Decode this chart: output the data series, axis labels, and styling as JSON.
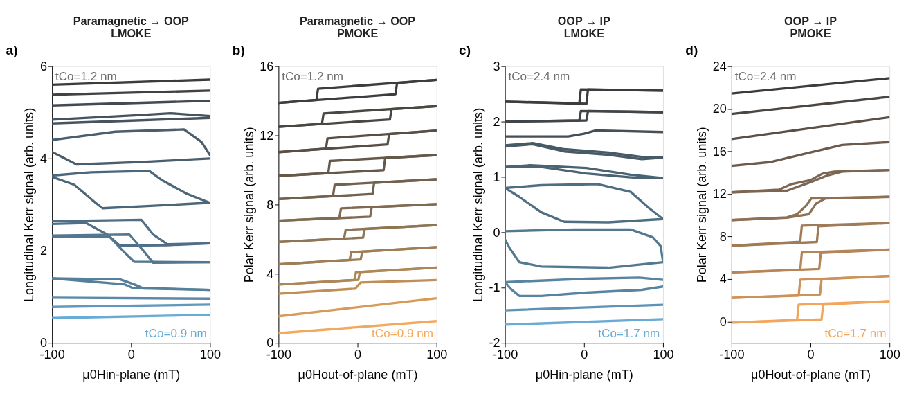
{
  "chart_data": [
    {
      "type": "line",
      "title": "Paramagnetic → OOP",
      "subtitle": "LMOKE",
      "xlabel": "μ0Hin-plane (mT)",
      "ylabel": "Longitudinal Kerr signal (arb. units)",
      "annotations": [
        "a)",
        "tCo=1.2 nm",
        "tCo=0.9 nm"
      ],
      "xlim": [
        -100,
        100
      ],
      "xticks": [
        -100,
        0,
        100
      ],
      "ylim": [
        0,
        6
      ],
      "yticks": [
        0,
        2,
        4,
        6
      ],
      "series": [
        {
          "color": "#3c3c3c",
          "x": [
            -100,
            100
          ],
          "values": [
            5.6,
            5.71
          ]
        },
        {
          "color": "#3f4346",
          "x": [
            -100,
            100
          ],
          "values": [
            5.38,
            5.47
          ]
        },
        {
          "color": "#434b52",
          "x": [
            -100,
            100
          ],
          "values": [
            5.15,
            5.25
          ]
        },
        {
          "color": "#475460",
          "x": [
            -100,
            0,
            100
          ],
          "values": [
            4.76,
            4.82,
            4.88
          ]
        },
        {
          "color": "#475460",
          "x": [
            -100,
            0,
            50,
            100
          ],
          "values": [
            4.84,
            4.93,
            4.98,
            4.92
          ]
        },
        {
          "color": "#4a5e6e",
          "x": [
            -100,
            -84,
            -69,
            10,
            100
          ],
          "values": [
            4.14,
            4.0,
            3.87,
            3.92,
            4.0
          ]
        },
        {
          "color": "#4a5e6e",
          "x": [
            -100,
            -96,
            -20,
            67,
            89,
            100
          ],
          "values": [
            4.4,
            4.41,
            4.58,
            4.63,
            4.36,
            4.07
          ]
        },
        {
          "color": "#4d677a",
          "x": [
            -100,
            -72,
            -45,
            -36,
            25,
            100
          ],
          "values": [
            3.6,
            3.43,
            3.04,
            2.92,
            2.97,
            3.04
          ]
        },
        {
          "color": "#4d677a",
          "x": [
            -100,
            -51,
            23,
            40,
            70,
            98
          ],
          "values": [
            3.63,
            3.7,
            3.73,
            3.52,
            3.24,
            3.05
          ]
        },
        {
          "color": "#506f86",
          "x": [
            -100,
            -57,
            -30,
            -14,
            46,
            100
          ],
          "values": [
            2.58,
            2.6,
            2.35,
            2.11,
            2.12,
            2.16
          ]
        },
        {
          "color": "#506f86",
          "x": [
            -100,
            13,
            28,
            46,
            100
          ],
          "values": [
            2.64,
            2.67,
            2.35,
            2.14,
            2.16
          ]
        },
        {
          "color": "#53778f",
          "x": [
            -100,
            -27,
            -11,
            4,
            100
          ],
          "values": [
            2.3,
            2.3,
            2.01,
            1.76,
            1.75
          ]
        },
        {
          "color": "#53778f",
          "x": [
            -100,
            -2,
            16,
            28,
            100
          ],
          "values": [
            2.33,
            2.35,
            1.99,
            1.74,
            1.75
          ]
        },
        {
          "color": "#567f99",
          "x": [
            -100,
            -14,
            4,
            16,
            100
          ],
          "values": [
            1.4,
            1.38,
            1.27,
            1.18,
            1.15
          ]
        },
        {
          "color": "#567f99",
          "x": [
            -100,
            -8,
            1,
            100
          ],
          "values": [
            1.4,
            1.27,
            1.2,
            1.15
          ]
        },
        {
          "color": "#5b8aa8",
          "x": [
            -100,
            100
          ],
          "values": [
            0.98,
            0.96
          ]
        },
        {
          "color": "#6198bf",
          "x": [
            -100,
            100
          ],
          "values": [
            0.78,
            0.83
          ]
        },
        {
          "color": "#69abd5",
          "x": [
            -100,
            100
          ],
          "values": [
            0.54,
            0.61
          ]
        }
      ]
    },
    {
      "type": "line",
      "title": "Paramagnetic → OOP",
      "subtitle": "PMOKE",
      "xlabel": "μ0Hout-of-plane (mT)",
      "ylabel": "Polar Kerr signal (arb. units)",
      "annotations": [
        "b)",
        "tCo=1.2 nm",
        "tCo=0.9 nm"
      ],
      "xlim": [
        -100,
        100
      ],
      "xticks": [
        -100,
        0,
        100
      ],
      "ylim": [
        0,
        16
      ],
      "yticks": [
        0,
        4,
        8,
        12,
        16
      ],
      "series": [
        {
          "color": "#3d3d3d",
          "x": [
            -100,
            48,
            50,
            100
          ],
          "values": [
            13.88,
            14.38,
            15.03,
            15.21
          ]
        },
        {
          "color": "#3d3d3d",
          "x": [
            -100,
            -52,
            -50,
            100
          ],
          "values": [
            13.88,
            14.05,
            14.7,
            15.21
          ]
        },
        {
          "color": "#4a4641",
          "x": [
            -100,
            41,
            43,
            100
          ],
          "values": [
            12.5,
            12.92,
            13.52,
            13.69
          ]
        },
        {
          "color": "#4a4641",
          "x": [
            -100,
            -45,
            -43,
            100
          ],
          "values": [
            12.5,
            12.67,
            13.27,
            13.69
          ]
        },
        {
          "color": "#574f45",
          "x": [
            -100,
            38,
            40,
            100
          ],
          "values": [
            11.03,
            11.48,
            12.08,
            12.28
          ]
        },
        {
          "color": "#574f45",
          "x": [
            -100,
            -40,
            -38,
            100
          ],
          "values": [
            11.03,
            11.23,
            11.83,
            12.28
          ]
        },
        {
          "color": "#64584a",
          "x": [
            -100,
            33,
            35,
            100
          ],
          "values": [
            9.66,
            9.99,
            10.69,
            10.86
          ]
        },
        {
          "color": "#64584a",
          "x": [
            -100,
            -37,
            -35,
            100
          ],
          "values": [
            9.66,
            9.82,
            10.52,
            10.86
          ]
        },
        {
          "color": "#72614e",
          "x": [
            -100,
            19,
            21,
            100
          ],
          "values": [
            8.32,
            8.61,
            9.26,
            9.46
          ]
        },
        {
          "color": "#72614e",
          "x": [
            -100,
            -31,
            -29,
            100
          ],
          "values": [
            8.32,
            8.49,
            9.14,
            9.46
          ]
        },
        {
          "color": "#806b52",
          "x": [
            -100,
            16,
            18,
            100
          ],
          "values": [
            7.07,
            7.3,
            7.85,
            8.02
          ]
        },
        {
          "color": "#806b52",
          "x": [
            -100,
            -23,
            -21,
            100
          ],
          "values": [
            7.07,
            7.23,
            7.78,
            8.02
          ]
        },
        {
          "color": "#8e7555",
          "x": [
            -100,
            7,
            9,
            100
          ],
          "values": [
            5.84,
            6.09,
            6.59,
            6.81
          ]
        },
        {
          "color": "#8e7555",
          "x": [
            -100,
            -17,
            -15,
            100
          ],
          "values": [
            5.84,
            6.04,
            6.54,
            6.81
          ]
        },
        {
          "color": "#9d7e57",
          "x": [
            -100,
            4,
            6,
            100
          ],
          "values": [
            4.55,
            4.83,
            5.28,
            5.54
          ]
        },
        {
          "color": "#9d7e57",
          "x": [
            -100,
            -10,
            -8,
            100
          ],
          "values": [
            4.55,
            4.8,
            5.25,
            5.54
          ]
        },
        {
          "color": "#ad8757",
          "x": [
            -100,
            1,
            3,
            100
          ],
          "values": [
            3.38,
            3.65,
            4.1,
            4.36
          ]
        },
        {
          "color": "#ad8757",
          "x": [
            -100,
            -4,
            -2,
            100
          ],
          "values": [
            3.38,
            3.64,
            4.09,
            4.36
          ]
        },
        {
          "color": "#c08f57",
          "x": [
            -100,
            -3,
            4,
            100
          ],
          "values": [
            2.85,
            3.14,
            3.5,
            3.64
          ]
        },
        {
          "color": "#d69a59",
          "x": [
            -100,
            100
          ],
          "values": [
            1.54,
            2.59
          ]
        },
        {
          "color": "#f3a95c",
          "x": [
            -100,
            100
          ],
          "values": [
            0.56,
            1.26
          ]
        }
      ]
    },
    {
      "type": "line",
      "title": "OOP → IP",
      "subtitle": "LMOKE",
      "xlabel": "μ0Hin-plane (mT)",
      "ylabel": "Longitudinal Kerr signal (arb. units)",
      "annotations": [
        "c)",
        "tCo=2.4 nm",
        "tCo=1.7 nm"
      ],
      "xlim": [
        -100,
        100
      ],
      "xticks": [
        -100,
        0,
        100
      ],
      "ylim": [
        -2,
        3
      ],
      "yticks": [
        -2,
        -1,
        0,
        1,
        2,
        3
      ],
      "series": [
        {
          "color": "#3c3c3c",
          "x": [
            -100,
            3,
            5,
            100
          ],
          "values": [
            2.36,
            2.32,
            2.58,
            2.56
          ]
        },
        {
          "color": "#3c3c3c",
          "x": [
            -100,
            -6,
            -4,
            100
          ],
          "values": [
            2.36,
            2.33,
            2.58,
            2.56
          ]
        },
        {
          "color": "#404549",
          "x": [
            -100,
            3,
            5,
            100
          ],
          "values": [
            2.0,
            2.02,
            2.19,
            2.17
          ]
        },
        {
          "color": "#404549",
          "x": [
            -100,
            -6,
            -4,
            100
          ],
          "values": [
            2.0,
            2.02,
            2.19,
            2.17
          ]
        },
        {
          "color": "#444f57",
          "x": [
            -100,
            -20,
            0,
            15,
            100
          ],
          "values": [
            1.73,
            1.73,
            1.78,
            1.84,
            1.81
          ]
        },
        {
          "color": "#485a66",
          "x": [
            -100,
            -65,
            -25,
            31,
            73,
            100
          ],
          "values": [
            1.55,
            1.59,
            1.46,
            1.4,
            1.32,
            1.35
          ]
        },
        {
          "color": "#485a66",
          "x": [
            -100,
            -65,
            -25,
            31,
            73,
            100
          ],
          "values": [
            1.57,
            1.61,
            1.5,
            1.44,
            1.36,
            1.35
          ]
        },
        {
          "color": "#4b6474",
          "x": [
            -100,
            -54,
            3,
            70,
            100
          ],
          "values": [
            1.18,
            1.18,
            1.06,
            0.98,
            0.98
          ]
        },
        {
          "color": "#4b6474",
          "x": [
            -100,
            -68,
            3,
            59,
            100
          ],
          "values": [
            1.18,
            1.21,
            1.16,
            1.04,
            0.98
          ]
        },
        {
          "color": "#4e6e82",
          "x": [
            -100,
            -82,
            -54,
            -25,
            31,
            100
          ],
          "values": [
            0.8,
            0.64,
            0.36,
            0.19,
            0.18,
            0.24
          ]
        },
        {
          "color": "#4e6e82",
          "x": [
            -100,
            -54,
            17,
            59,
            82,
            100
          ],
          "values": [
            0.8,
            0.85,
            0.87,
            0.73,
            0.44,
            0.24
          ]
        },
        {
          "color": "#53798f",
          "x": [
            -100,
            -94,
            -82,
            -54,
            31,
            100
          ],
          "values": [
            -0.13,
            -0.29,
            -0.54,
            -0.62,
            -0.64,
            -0.54
          ]
        },
        {
          "color": "#53798f",
          "x": [
            -100,
            -11,
            59,
            87,
            97,
            100
          ],
          "values": [
            0.02,
            0.05,
            0.05,
            -0.09,
            -0.25,
            -0.54
          ]
        },
        {
          "color": "#58849f",
          "x": [
            -100,
            -93,
            -82,
            -54,
            3,
            73,
            100
          ],
          "values": [
            -0.9,
            -1.02,
            -1.15,
            -1.15,
            -1.09,
            -1.04,
            -0.98
          ]
        },
        {
          "color": "#58849f",
          "x": [
            -100,
            3,
            70,
            100
          ],
          "values": [
            -0.9,
            -0.84,
            -0.82,
            -0.86
          ]
        },
        {
          "color": "#5f93b6",
          "x": [
            -100,
            100
          ],
          "values": [
            -1.41,
            -1.31
          ]
        },
        {
          "color": "#69abd5",
          "x": [
            -100,
            100
          ],
          "values": [
            -1.67,
            -1.57
          ]
        }
      ]
    },
    {
      "type": "line",
      "title": "OOP → IP",
      "subtitle": "PMOKE",
      "xlabel": "μ0Hout-of-plane (mT)",
      "ylabel": "Polar Kerr signal (arb. units)",
      "annotations": [
        "d)",
        "tCo=2.4 nm",
        "tCo=1.7 nm"
      ],
      "xlim": [
        -100,
        100
      ],
      "xticks": [
        -100,
        0,
        100
      ],
      "ylim": [
        -2,
        24
      ],
      "yticks": [
        0,
        4,
        8,
        12,
        16,
        20,
        24
      ],
      "series": [
        {
          "color": "#3c3c3c",
          "x": [
            -100,
            100
          ],
          "values": [
            21.43,
            22.88
          ]
        },
        {
          "color": "#4b4642",
          "x": [
            -100,
            100
          ],
          "values": [
            19.51,
            21.13
          ]
        },
        {
          "color": "#5b5048",
          "x": [
            -100,
            100
          ],
          "values": [
            17.16,
            19.21
          ]
        },
        {
          "color": "#6b5a4d",
          "x": [
            -100,
            -50,
            0,
            40,
            100
          ],
          "values": [
            14.63,
            15.0,
            15.9,
            16.6,
            16.87
          ]
        },
        {
          "color": "#7c6552",
          "x": [
            -100,
            -30,
            0,
            20,
            40,
            100
          ],
          "values": [
            12.15,
            12.3,
            13.1,
            13.7,
            14.1,
            14.24
          ]
        },
        {
          "color": "#7c6552",
          "x": [
            -100,
            -40,
            -25,
            0,
            15,
            30,
            100
          ],
          "values": [
            12.15,
            12.4,
            12.9,
            13.3,
            13.9,
            14.1,
            14.24
          ]
        },
        {
          "color": "#8e7055",
          "x": [
            -100,
            -30,
            -2,
            7,
            19,
            100
          ],
          "values": [
            9.55,
            9.77,
            10.09,
            11.1,
            11.58,
            11.73
          ]
        },
        {
          "color": "#8e7055",
          "x": [
            -100,
            -30,
            -17,
            -5,
            1,
            100
          ],
          "values": [
            9.55,
            9.8,
            10.09,
            10.95,
            11.58,
            11.73
          ]
        },
        {
          "color": "#a07b57",
          "x": [
            -100,
            8,
            10,
            100
          ],
          "values": [
            7.14,
            7.48,
            8.95,
            9.27
          ]
        },
        {
          "color": "#a07b57",
          "x": [
            -100,
            -13,
            -11,
            100
          ],
          "values": [
            7.14,
            7.5,
            9.02,
            9.27
          ]
        },
        {
          "color": "#b58558",
          "x": [
            -100,
            11,
            13,
            100
          ],
          "values": [
            4.63,
            4.95,
            6.45,
            6.78
          ]
        },
        {
          "color": "#b58558",
          "x": [
            -100,
            -13,
            -11,
            100
          ],
          "values": [
            4.63,
            4.86,
            6.5,
            6.78
          ]
        },
        {
          "color": "#cd9259",
          "x": [
            -100,
            12,
            14,
            100
          ],
          "values": [
            2.24,
            2.55,
            4.0,
            4.29
          ]
        },
        {
          "color": "#cd9259",
          "x": [
            -100,
            -15,
            -13,
            100
          ],
          "values": [
            2.24,
            2.45,
            3.94,
            4.29
          ]
        },
        {
          "color": "#f2a65b",
          "x": [
            -100,
            14,
            16,
            100
          ],
          "values": [
            -0.09,
            0.21,
            1.6,
            1.92
          ]
        },
        {
          "color": "#f2a65b",
          "x": [
            -100,
            -17,
            -15,
            100
          ],
          "values": [
            -0.09,
            0.17,
            1.6,
            1.92
          ]
        }
      ]
    }
  ]
}
